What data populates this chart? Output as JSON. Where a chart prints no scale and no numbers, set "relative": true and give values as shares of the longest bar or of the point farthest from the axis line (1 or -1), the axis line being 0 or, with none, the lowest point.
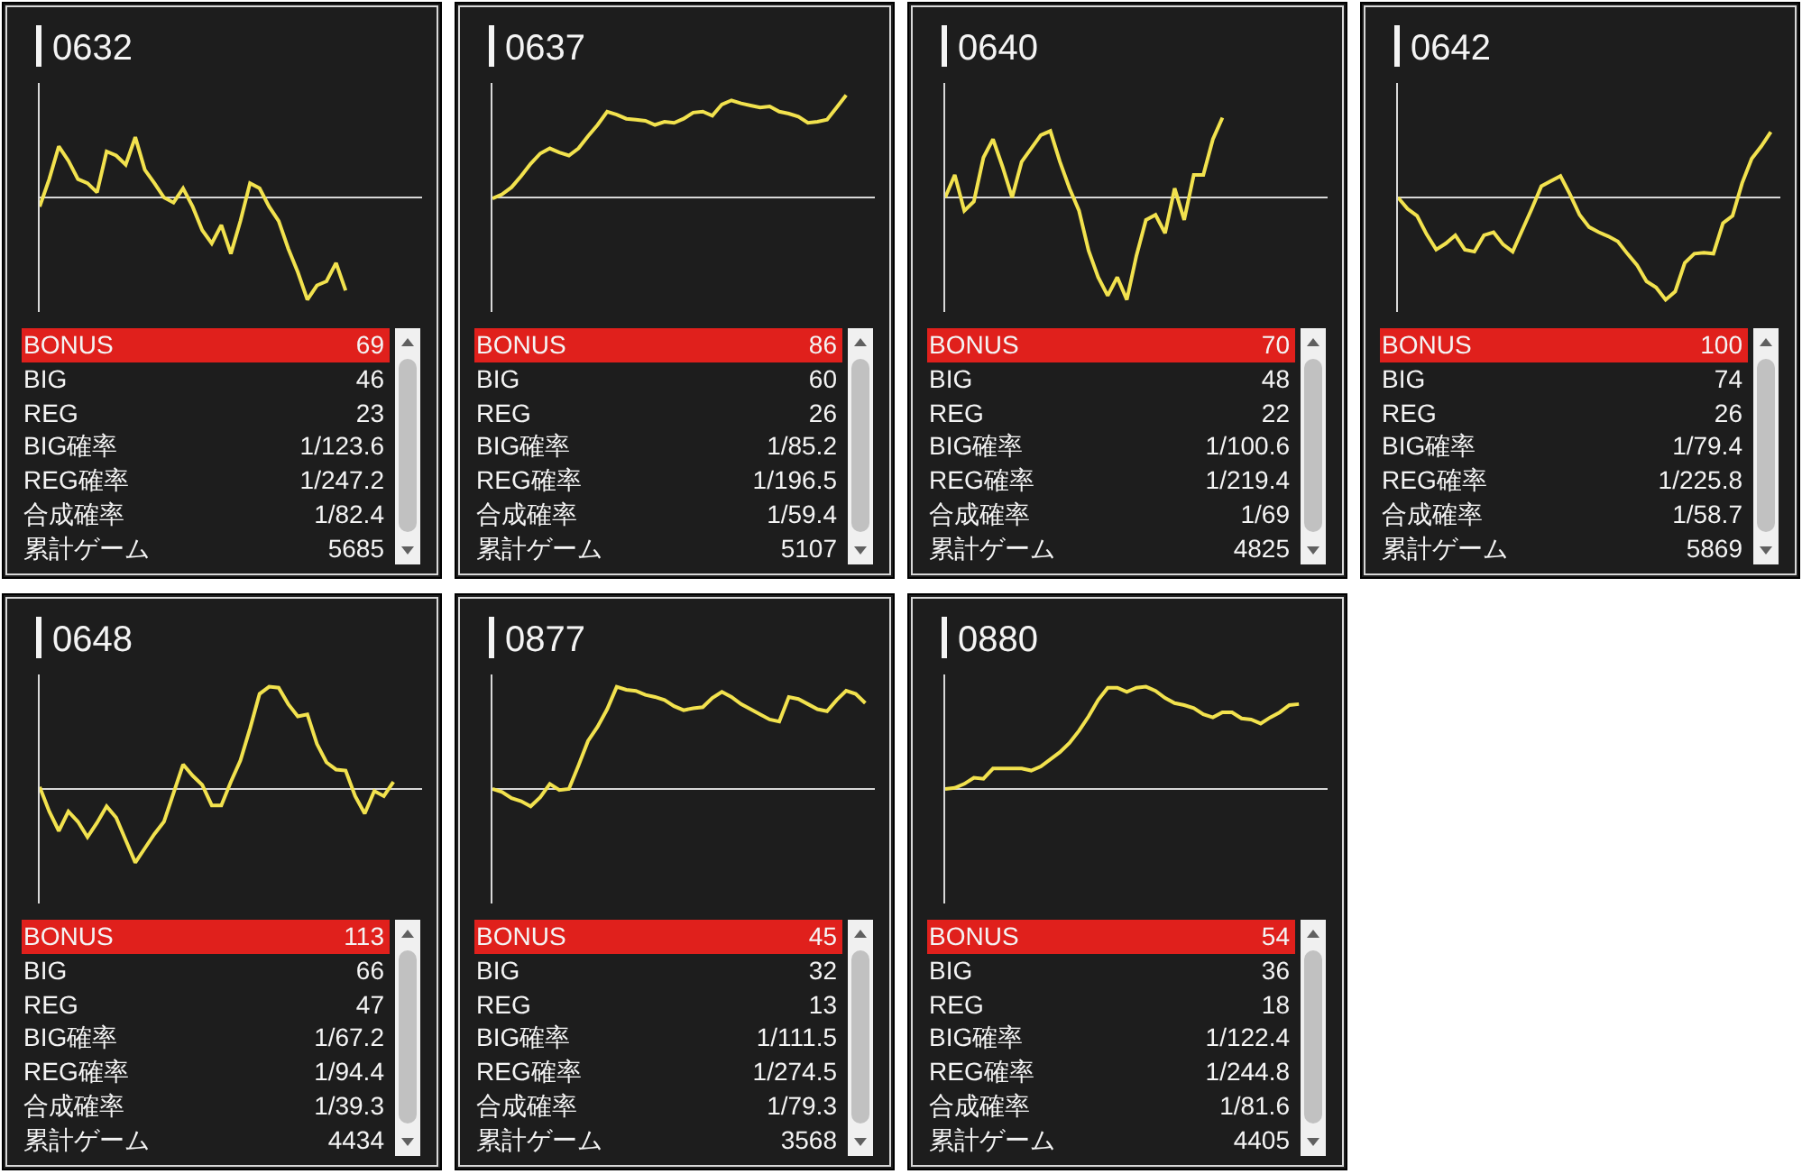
{
  "chart_data": [
    {
      "type": "line",
      "title": "0632",
      "relative": true,
      "categories": [
        null,
        null,
        null,
        null,
        null,
        null,
        null,
        null,
        null,
        null,
        null,
        null,
        null,
        null,
        null,
        null,
        null,
        null,
        null,
        null,
        null,
        null,
        null,
        null,
        null,
        null,
        null,
        null,
        null,
        null,
        null,
        null,
        null,
        null,
        null,
        null,
        null,
        null,
        null,
        null,
        null
      ],
      "series": [
        {
          "color": "#f2e24e",
          "values": [
            -0.09,
            0.18,
            0.5,
            0.36,
            0.18,
            0.14,
            0.05,
            0.45,
            0.41,
            0.32,
            0.59,
            0.27,
            0.14,
            0,
            -0.05,
            0.09,
            -0.09,
            -0.32,
            -0.45,
            -0.27,
            -0.55,
            -0.23,
            0.14,
            0.09,
            -0.09,
            -0.23,
            -0.5,
            -0.73,
            -1,
            -0.86,
            -0.82,
            -0.64,
            -0.91,
            null,
            null,
            null,
            null,
            null,
            null,
            null,
            null
          ]
        }
      ]
    },
    {
      "type": "other",
      "annotations": [
        "BONUS",
        "69",
        "BIG",
        "46",
        "REG",
        "23",
        "BIG確率",
        "1/123.6",
        "REG確率",
        "1/247.2",
        "合成確率",
        "1/82.4",
        "累計ゲーム",
        "5685"
      ]
    },
    {
      "type": "line",
      "title": "0637",
      "relative": true,
      "categories": [
        null,
        null,
        null,
        null,
        null,
        null,
        null,
        null,
        null,
        null,
        null,
        null,
        null,
        null,
        null,
        null,
        null,
        null,
        null,
        null,
        null,
        null,
        null,
        null,
        null,
        null,
        null,
        null,
        null,
        null,
        null,
        null,
        null,
        null,
        null,
        null,
        null,
        null,
        null,
        null,
        null
      ],
      "series": [
        {
          "color": "#f2e24e",
          "values": [
            -0.01,
            0.03,
            0.1,
            0.21,
            0.33,
            0.43,
            0.48,
            0.44,
            0.41,
            0.48,
            0.6,
            0.71,
            0.84,
            0.81,
            0.77,
            0.76,
            0.75,
            0.71,
            0.74,
            0.73,
            0.77,
            0.83,
            0.84,
            0.8,
            0.91,
            0.95,
            0.92,
            0.9,
            0.88,
            0.89,
            0.84,
            0.82,
            0.79,
            0.73,
            0.74,
            0.76,
            0.88,
            1,
            null,
            null,
            null
          ]
        }
      ]
    },
    {
      "type": "other",
      "annotations": [
        "BONUS",
        "86",
        "BIG",
        "60",
        "REG",
        "26",
        "BIG確率",
        "1/85.2",
        "REG確率",
        "1/196.5",
        "合成確率",
        "1/59.4",
        "累計ゲーム",
        "5107"
      ]
    },
    {
      "type": "line",
      "title": "0640",
      "relative": true,
      "categories": [
        null,
        null,
        null,
        null,
        null,
        null,
        null,
        null,
        null,
        null,
        null,
        null,
        null,
        null,
        null,
        null,
        null,
        null,
        null,
        null,
        null,
        null,
        null,
        null,
        null,
        null,
        null,
        null,
        null,
        null,
        null,
        null,
        null,
        null,
        null,
        null,
        null,
        null,
        null,
        null,
        null
      ],
      "series": [
        {
          "color": "#f2e24e",
          "values": [
            0,
            0.22,
            -0.13,
            -0.04,
            0.39,
            0.57,
            0.3,
            0,
            0.35,
            0.48,
            0.61,
            0.65,
            0.35,
            0.09,
            -0.13,
            -0.52,
            -0.78,
            -0.96,
            -0.78,
            -1,
            -0.57,
            -0.22,
            -0.17,
            -0.35,
            0.09,
            -0.22,
            0.22,
            0.22,
            0.57,
            0.78,
            null,
            null,
            null,
            null,
            null,
            null,
            null,
            null,
            null,
            null,
            null
          ]
        }
      ]
    },
    {
      "type": "other",
      "annotations": [
        "BONUS",
        "70",
        "BIG",
        "48",
        "REG",
        "22",
        "BIG確率",
        "1/100.6",
        "REG確率",
        "1/219.4",
        "合成確率",
        "1/69",
        "累計ゲーム",
        "4825"
      ]
    },
    {
      "type": "line",
      "title": "0642",
      "relative": true,
      "categories": [
        null,
        null,
        null,
        null,
        null,
        null,
        null,
        null,
        null,
        null,
        null,
        null,
        null,
        null,
        null,
        null,
        null,
        null,
        null,
        null,
        null,
        null,
        null,
        null,
        null,
        null,
        null,
        null,
        null,
        null,
        null,
        null,
        null,
        null,
        null,
        null,
        null,
        null,
        null,
        null,
        null
      ],
      "series": [
        {
          "color": "#f2e24e",
          "values": [
            0,
            -0.11,
            -0.18,
            -0.36,
            -0.51,
            -0.45,
            -0.37,
            -0.51,
            -0.53,
            -0.37,
            -0.34,
            -0.46,
            -0.53,
            -0.32,
            -0.11,
            0.11,
            0.16,
            0.21,
            0.03,
            -0.17,
            -0.29,
            -0.34,
            -0.38,
            -0.43,
            -0.55,
            -0.66,
            -0.82,
            -0.88,
            -1,
            -0.92,
            -0.64,
            -0.55,
            -0.54,
            -0.55,
            -0.25,
            -0.18,
            0.14,
            0.38,
            0.5,
            0.64,
            null
          ]
        }
      ]
    },
    {
      "type": "other",
      "annotations": [
        "BONUS",
        "100",
        "BIG",
        "74",
        "REG",
        "26",
        "BIG確率",
        "1/79.4",
        "REG確率",
        "1/225.8",
        "合成確率",
        "1/58.7",
        "累計ゲーム",
        "5869"
      ]
    },
    {
      "type": "line",
      "title": "0648",
      "relative": true,
      "categories": [
        null,
        null,
        null,
        null,
        null,
        null,
        null,
        null,
        null,
        null,
        null,
        null,
        null,
        null,
        null,
        null,
        null,
        null,
        null,
        null,
        null,
        null,
        null,
        null,
        null,
        null,
        null,
        null,
        null,
        null,
        null,
        null,
        null,
        null,
        null,
        null,
        null,
        null,
        null,
        null,
        null
      ],
      "series": [
        {
          "color": "#f2e24e",
          "values": [
            0.02,
            -0.22,
            -0.41,
            -0.22,
            -0.32,
            -0.47,
            -0.33,
            -0.17,
            -0.28,
            -0.5,
            -0.72,
            -0.58,
            -0.44,
            -0.32,
            -0.04,
            0.24,
            0.13,
            0.04,
            -0.16,
            -0.16,
            0.07,
            0.28,
            0.59,
            0.93,
            1,
            0.99,
            0.83,
            0.71,
            0.73,
            0.44,
            0.26,
            0.19,
            0.18,
            -0.07,
            -0.24,
            -0.02,
            -0.07,
            0.07,
            null,
            null,
            null
          ]
        }
      ]
    },
    {
      "type": "other",
      "annotations": [
        "BONUS",
        "113",
        "BIG",
        "66",
        "REG",
        "47",
        "BIG確率",
        "1/67.2",
        "REG確率",
        "1/94.4",
        "合成確率",
        "1/39.3",
        "累計ゲーム",
        "4434"
      ]
    },
    {
      "type": "line",
      "title": "0877",
      "relative": true,
      "categories": [
        null,
        null,
        null,
        null,
        null,
        null,
        null,
        null,
        null,
        null,
        null,
        null,
        null,
        null,
        null,
        null,
        null,
        null,
        null,
        null,
        null,
        null,
        null,
        null,
        null,
        null,
        null,
        null,
        null,
        null,
        null,
        null,
        null,
        null,
        null,
        null,
        null,
        null,
        null,
        null,
        null
      ],
      "series": [
        {
          "color": "#f2e24e",
          "values": [
            0,
            -0.03,
            -0.09,
            -0.12,
            -0.17,
            -0.08,
            0.05,
            -0.01,
            0,
            0.23,
            0.47,
            0.61,
            0.78,
            1,
            0.97,
            0.96,
            0.92,
            0.9,
            0.87,
            0.81,
            0.77,
            0.79,
            0.8,
            0.89,
            0.95,
            0.9,
            0.83,
            0.78,
            0.73,
            0.68,
            0.66,
            0.9,
            0.88,
            0.83,
            0.78,
            0.76,
            0.87,
            0.96,
            0.93,
            0.84,
            null
          ]
        }
      ]
    },
    {
      "type": "other",
      "annotations": [
        "BONUS",
        "45",
        "BIG",
        "32",
        "REG",
        "13",
        "BIG確率",
        "1/111.5",
        "REG確率",
        "1/274.5",
        "合成確率",
        "1/79.3",
        "累計ゲーム",
        "3568"
      ]
    },
    {
      "type": "line",
      "title": "0880",
      "relative": true,
      "categories": [
        null,
        null,
        null,
        null,
        null,
        null,
        null,
        null,
        null,
        null,
        null,
        null,
        null,
        null,
        null,
        null,
        null,
        null,
        null,
        null,
        null,
        null,
        null,
        null,
        null,
        null,
        null,
        null,
        null,
        null,
        null,
        null,
        null,
        null,
        null,
        null,
        null,
        null,
        null,
        null,
        null
      ],
      "series": [
        {
          "color": "#f2e24e",
          "values": [
            0,
            0.01,
            0.05,
            0.11,
            0.1,
            0.2,
            0.2,
            0.2,
            0.2,
            0.18,
            0.22,
            0.29,
            0.36,
            0.45,
            0.57,
            0.71,
            0.87,
            0.99,
            0.99,
            0.95,
            0.99,
            1,
            0.96,
            0.89,
            0.84,
            0.82,
            0.79,
            0.73,
            0.7,
            0.75,
            0.75,
            0.69,
            0.68,
            0.64,
            0.7,
            0.75,
            0.82,
            0.83,
            null,
            null,
            null
          ]
        }
      ]
    },
    {
      "type": "other",
      "annotations": [
        "BONUS",
        "54",
        "BIG",
        "36",
        "REG",
        "18",
        "BIG確率",
        "1/122.4",
        "REG確率",
        "1/244.8",
        "合成確率",
        "1/81.6",
        "累計ゲーム",
        "4405"
      ]
    }
  ]
}
